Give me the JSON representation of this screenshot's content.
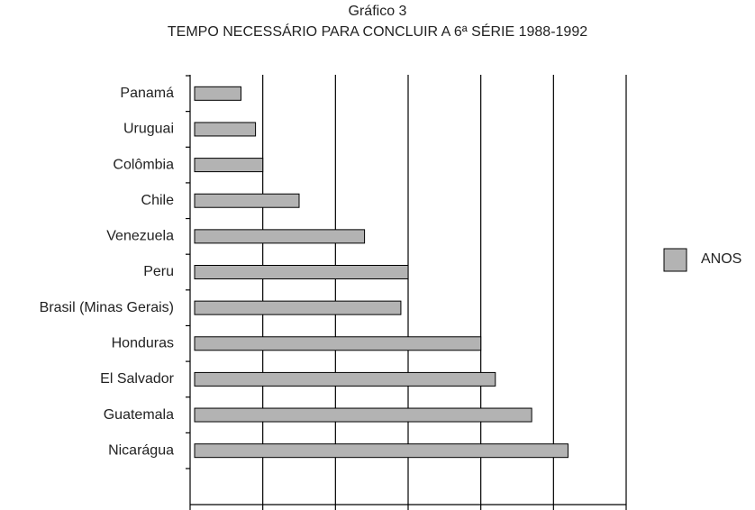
{
  "chart_data": {
    "type": "hbar",
    "title": "Gráfico 3",
    "subtitle": "TEMPO NECESSÁRIO PARA CONCLUIR A 6ª SÉRIE 1988-1992",
    "categories": [
      "Panamá",
      "Uruguai",
      "Colômbia",
      "Chile",
      "Venezuela",
      "Peru",
      "Brasil (Minas Gerais)",
      "Honduras",
      "El Salvador",
      "Guatemala",
      "Nicarágua"
    ],
    "series": [
      {
        "name": "ANOS",
        "color": "#b3b3b3",
        "values": [
          6.7,
          6.9,
          7.0,
          7.5,
          8.4,
          9.0,
          8.9,
          10.0,
          10.2,
          10.7,
          11.2
        ]
      }
    ],
    "xlim": [
      6,
      12
    ],
    "xticks": [
      6,
      7,
      8,
      9,
      10,
      11,
      12
    ],
    "grid": true,
    "legend": "right"
  }
}
